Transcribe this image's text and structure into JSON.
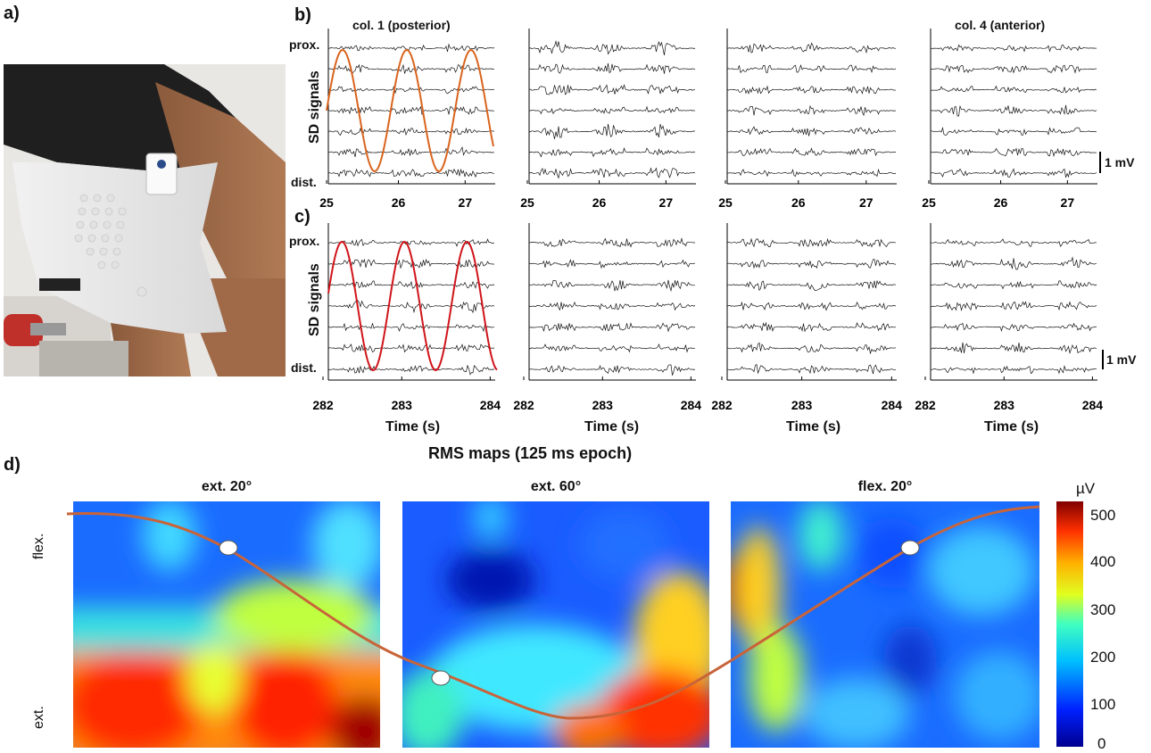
{
  "panels": {
    "a": "a)",
    "b": "b)",
    "c": "c)",
    "d": "d)"
  },
  "panel_b": {
    "col_first": "col. 1 (posterior)",
    "col_last": "col. 4 (anterior)",
    "prox": "prox.",
    "dist": "dist.",
    "ylabel": "SD signals",
    "scale": "1 mV",
    "xticks": [
      "25",
      "26",
      "27"
    ]
  },
  "panel_c": {
    "prox": "prox.",
    "dist": "dist.",
    "ylabel": "SD signals",
    "scale": "1 mV",
    "xticks": [
      "282",
      "283",
      "284"
    ],
    "xlabel": "Time (s)"
  },
  "panel_d": {
    "title": "RMS maps (125 ms epoch)",
    "maps": [
      "ext. 20°",
      "ext. 60°",
      "flex. 20°"
    ],
    "y_top": "flex.",
    "y_bottom": "ext.",
    "colorbar_unit": "µV",
    "colorbar_ticks": [
      "500",
      "400",
      "300",
      "200",
      "100",
      "0"
    ]
  },
  "colors": {
    "trace_b": "#d9641e",
    "trace_c": "#d0141a",
    "curve_d": "#c8643a"
  }
}
